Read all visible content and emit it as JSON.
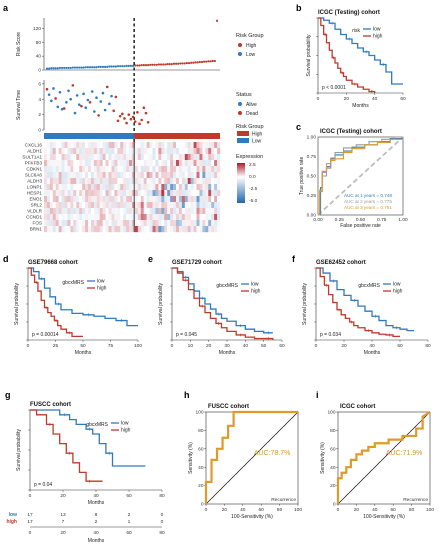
{
  "colors": {
    "high": "#c0392b",
    "low": "#2e7bbf",
    "alive": "#2e7bbf",
    "dead": "#c0392b",
    "roc": "#e09a2a",
    "roc_grey": "#bdbdbd",
    "auc1": "#2e7bbf",
    "auc2": "#9a9a9a",
    "auc3": "#e09a2a",
    "heat_high": "#b2182b",
    "heat_low": "#2166ac"
  },
  "panel_a": {
    "label": "a",
    "risk_score": {
      "ylabel": "Risk Score",
      "yticks": [
        "0",
        "40",
        "80",
        "120"
      ],
      "legend_title": "Risk Group",
      "legend_items": [
        "High",
        "Low"
      ]
    },
    "survival_time": {
      "ylabel": "Survival Time",
      "yticks": [
        "0",
        "2",
        "4",
        "6"
      ],
      "legend_title": "Status",
      "legend_items": [
        "Alive",
        "Dead"
      ]
    },
    "risk_bar": {
      "legend_title": "Risk Group",
      "legend_items": [
        "High",
        "Low"
      ]
    },
    "heatmap": {
      "genes": [
        "CXCL16",
        "ALDH1",
        "SULT1A1",
        "PFKFB3",
        "CDKN1",
        "SLC6A6",
        "ALDH3",
        "LONP1",
        "HESP1",
        "ENO1",
        "SRL2",
        "VLDLR",
        "CCND1",
        "FOS",
        "BRN1"
      ],
      "legend_title": "Expression",
      "legend_ticks": [
        "2.5",
        "0.0",
        "-2.5",
        "-5.0"
      ]
    }
  },
  "km_panels": [
    {
      "id": "b",
      "label": "b",
      "title": "ICGC (Testing) cohort",
      "xlabel": "Months",
      "ylabel": "Survival probability",
      "xticks": [
        "0",
        "20",
        "40",
        "60"
      ],
      "yticks": [
        "0.00",
        "0.25",
        "0.50",
        "0.75",
        "1.00"
      ],
      "legend_title": "risk",
      "legend_items": [
        "low",
        "high"
      ],
      "pvalue": "p < 0.0001"
    },
    {
      "id": "d",
      "label": "d",
      "title": "GSE79668 cohort",
      "xlabel": "Months",
      "ylabel": "Survival probability",
      "xticks": [
        "0",
        "25",
        "50",
        "75",
        "100"
      ],
      "yticks": [
        "0.00",
        "0.25",
        "0.50",
        "0.75",
        "1.00"
      ],
      "legend_title": "gbcxMRS",
      "legend_items": [
        "low",
        "high"
      ],
      "pvalue": "p = 0.00014"
    },
    {
      "id": "e",
      "label": "e",
      "title": "GSE71729 cohort",
      "xlabel": "Months",
      "ylabel": "Survival probability",
      "xticks": [
        "0",
        "10",
        "20",
        "30",
        "40",
        "50",
        "60"
      ],
      "yticks": [
        "0.00",
        "0.25",
        "0.50",
        "0.75",
        "1.00"
      ],
      "legend_title": "gbcxMRS",
      "legend_items": [
        "low",
        "high"
      ],
      "pvalue": "p = 0.045"
    },
    {
      "id": "f",
      "label": "f",
      "title": "GSE62452 cohort",
      "xlabel": "Months",
      "ylabel": "Survival probability",
      "xticks": [
        "0",
        "20",
        "40",
        "60",
        "80"
      ],
      "yticks": [
        "0.00",
        "0.25",
        "0.50",
        "0.75",
        "1.00"
      ],
      "legend_title": "gbcxMRS",
      "legend_items": [
        "low",
        "high"
      ],
      "pvalue": "p = 0.034"
    },
    {
      "id": "g",
      "label": "g",
      "title": "FUSCC cohort",
      "xlabel": "Months",
      "ylabel": "Survival probability",
      "xticks": [
        "0",
        "20",
        "40",
        "60",
        "80"
      ],
      "yticks": [
        "0.00",
        "0.25",
        "0.50",
        "0.75",
        "1.00"
      ],
      "legend_title": "gbcxMRS",
      "legend_items": [
        "low",
        "high"
      ],
      "pvalue": "p = 0.04",
      "risk_table": {
        "rows": [
          {
            "name": "low",
            "values": [
              "17",
              "13",
              "8",
              "2",
              "0"
            ]
          },
          {
            "name": "high",
            "values": [
              "17",
              "7",
              "2",
              "1",
              "0"
            ]
          }
        ],
        "xticks": [
          "0",
          "20",
          "40",
          "60",
          "80"
        ],
        "xlabel": "Months"
      }
    }
  ],
  "panel_c": {
    "label": "c",
    "title": "ICGC (Testing) cohort",
    "xlabel": "False positive rate",
    "ylabel": "True positive rate",
    "ticks": [
      "0.00",
      "0.25",
      "0.50",
      "0.75",
      "1.00"
    ],
    "auc_lines": [
      "AUC at 1 years = 0.748",
      "AUC at 2 years = 0.775",
      "AUC at 3 years = 0.751"
    ]
  },
  "roc_panels": [
    {
      "id": "h",
      "label": "h",
      "title": "FUSCC  cohort",
      "xlabel": "100-Sensitivity (%)",
      "ylabel": "Sensitivity (%)",
      "ticks": [
        "0",
        "20",
        "40",
        "60",
        "80",
        "100"
      ],
      "auc": "AUC:78.7%",
      "corner_label": "Recurrence"
    },
    {
      "id": "i",
      "label": "i",
      "title": "ICGC  cohort",
      "xlabel": "100-Sensitivity (%)",
      "ylabel": "Sensitivity (%)",
      "ticks": [
        "0",
        "20",
        "40",
        "60",
        "80",
        "100"
      ],
      "auc": "AUC:71.9%",
      "corner_label": "Recurrence"
    }
  ],
  "chart_data": [
    {
      "type": "scatter",
      "panel": "a-risk-score",
      "ylabel": "Risk Score",
      "ylim": [
        0,
        150
      ],
      "n_samples": 80,
      "cutoff_index": 41,
      "series": [
        {
          "name": "Low",
          "values": [
            4,
            4,
            5,
            5,
            5,
            5,
            6,
            6,
            6,
            6,
            6,
            6,
            7,
            7,
            7,
            7,
            7,
            7,
            8,
            8,
            8,
            8,
            8,
            8,
            9,
            9,
            9,
            9,
            9,
            10,
            10,
            10,
            10,
            11,
            11,
            11,
            11,
            12,
            12,
            12,
            12
          ]
        },
        {
          "name": "High",
          "values": [
            13,
            13,
            13,
            14,
            14,
            14,
            14,
            15,
            15,
            15,
            15,
            16,
            16,
            16,
            16,
            17,
            17,
            17,
            18,
            18,
            18,
            19,
            19,
            19,
            20,
            20,
            21,
            21,
            22,
            22,
            23,
            23,
            24,
            24,
            25,
            25,
            26,
            26,
            142
          ]
        }
      ]
    },
    {
      "type": "scatter",
      "panel": "a-survival-time",
      "ylabel": "Survival Time",
      "ylim": [
        0,
        6.5
      ],
      "series": [
        {
          "name": "Alive",
          "values": [
            4.6,
            3.8,
            5.4,
            3.0,
            4.9,
            2.7,
            3.6,
            5.1,
            4.0,
            2.2,
            4.5,
            3.3,
            4.7,
            2.9,
            3.9,
            5.0,
            2.4,
            4.2,
            3.7,
            4.8,
            2.6,
            3.4,
            4.4
          ]
        },
        {
          "name": "Dead",
          "values": [
            5.3,
            4.1,
            2.8,
            5.8,
            3.1,
            3.6,
            1.9,
            5.6,
            2.5,
            4.3,
            1.2,
            1.8,
            2.1,
            1.5,
            0.9,
            2.0,
            1.4,
            1.7,
            1.1,
            2.3,
            0.8,
            1.3,
            2.9,
            2.2,
            1.0
          ]
        }
      ]
    },
    {
      "type": "heatmap",
      "panel": "a-heatmap",
      "rows": [
        "CXCL16",
        "ALDH1",
        "SULT1A1",
        "PFKFB3",
        "CDKN1",
        "SLC6A6",
        "ALDH3",
        "LONP1",
        "HESP1",
        "ENO1",
        "SRL2",
        "VLDLR",
        "CCND1",
        "FOS",
        "BRN1"
      ],
      "range": [
        -5,
        2.5
      ]
    },
    {
      "type": "line",
      "panel": "b",
      "title": "ICGC (Testing) cohort",
      "xlabel": "Months",
      "ylabel": "Survival probability",
      "xlim": [
        0,
        60
      ],
      "ylim": [
        0,
        1
      ],
      "series": [
        {
          "name": "low",
          "x": [
            0,
            4,
            8,
            12,
            16,
            20,
            24,
            28,
            32,
            36,
            40,
            44,
            48,
            52,
            60
          ],
          "y": [
            1.0,
            0.97,
            0.93,
            0.85,
            0.78,
            0.72,
            0.66,
            0.6,
            0.55,
            0.5,
            0.44,
            0.38,
            0.28,
            0.12,
            0.12
          ]
        },
        {
          "name": "high",
          "x": [
            0,
            2,
            4,
            6,
            8,
            10,
            12,
            14,
            16,
            18,
            20,
            24,
            28,
            32,
            36,
            40
          ],
          "y": [
            1.0,
            0.9,
            0.78,
            0.67,
            0.57,
            0.47,
            0.4,
            0.33,
            0.27,
            0.22,
            0.17,
            0.12,
            0.08,
            0.05,
            0.02,
            0.0
          ]
        }
      ]
    },
    {
      "type": "line",
      "panel": "c",
      "title": "ICGC (Testing) cohort",
      "xlabel": "False positive rate",
      "ylabel": "True positive rate",
      "xlim": [
        0,
        1
      ],
      "ylim": [
        0,
        1
      ],
      "series": [
        {
          "name": "1 year",
          "x": [
            0,
            0.03,
            0.05,
            0.1,
            0.15,
            0.2,
            0.3,
            0.4,
            0.55,
            0.7,
            0.85,
            1.0
          ],
          "y": [
            0,
            0.35,
            0.55,
            0.62,
            0.72,
            0.77,
            0.82,
            0.87,
            0.9,
            0.94,
            0.98,
            1.0
          ]
        },
        {
          "name": "2 years",
          "x": [
            0,
            0.02,
            0.05,
            0.1,
            0.15,
            0.2,
            0.3,
            0.45,
            0.6,
            0.75,
            0.9,
            1.0
          ],
          "y": [
            0,
            0.3,
            0.5,
            0.6,
            0.73,
            0.8,
            0.86,
            0.9,
            0.94,
            0.97,
            1.0,
            1.0
          ]
        },
        {
          "name": "3 years",
          "x": [
            0,
            0.02,
            0.05,
            0.1,
            0.15,
            0.2,
            0.3,
            0.4,
            0.55,
            0.7,
            0.85,
            1.0
          ],
          "y": [
            0,
            0.32,
            0.56,
            0.66,
            0.7,
            0.72,
            0.8,
            0.85,
            0.9,
            0.93,
            0.97,
            1.0
          ]
        }
      ]
    },
    {
      "type": "line",
      "panel": "d",
      "title": "GSE79668 cohort",
      "xlabel": "Months",
      "ylabel": "Survival probability",
      "xlim": [
        0,
        100
      ],
      "ylim": [
        0,
        1
      ],
      "series": [
        {
          "name": "low",
          "x": [
            0,
            5,
            10,
            15,
            20,
            25,
            30,
            40,
            50,
            60,
            70,
            80,
            90,
            100
          ],
          "y": [
            1.0,
            0.95,
            0.85,
            0.72,
            0.6,
            0.5,
            0.42,
            0.37,
            0.35,
            0.33,
            0.3,
            0.27,
            0.2,
            0.2
          ]
        },
        {
          "name": "high",
          "x": [
            0,
            3,
            6,
            9,
            12,
            15,
            18,
            21,
            24,
            27,
            30,
            35,
            40,
            45,
            50
          ],
          "y": [
            1.0,
            0.9,
            0.8,
            0.68,
            0.55,
            0.45,
            0.38,
            0.33,
            0.27,
            0.2,
            0.15,
            0.1,
            0.05,
            0.05,
            0.05
          ]
        }
      ]
    },
    {
      "type": "line",
      "panel": "e",
      "title": "GSE71729 cohort",
      "xlabel": "Months",
      "ylabel": "Survival probability",
      "xlim": [
        0,
        60
      ],
      "ylim": [
        0,
        1
      ],
      "series": [
        {
          "name": "low",
          "x": [
            0,
            3,
            6,
            9,
            12,
            15,
            18,
            21,
            24,
            27,
            30,
            35,
            40,
            45,
            50,
            55
          ],
          "y": [
            1.0,
            0.95,
            0.87,
            0.78,
            0.68,
            0.58,
            0.5,
            0.43,
            0.36,
            0.3,
            0.26,
            0.2,
            0.15,
            0.12,
            0.1,
            0.1
          ]
        },
        {
          "name": "high",
          "x": [
            0,
            3,
            6,
            9,
            12,
            15,
            18,
            21,
            24,
            27,
            30,
            35,
            40,
            45,
            50,
            55
          ],
          "y": [
            1.0,
            0.93,
            0.83,
            0.7,
            0.58,
            0.47,
            0.38,
            0.3,
            0.23,
            0.17,
            0.12,
            0.07,
            0.04,
            0.02,
            0.02,
            0.0
          ]
        }
      ]
    },
    {
      "type": "line",
      "panel": "f",
      "title": "GSE62452 cohort",
      "xlabel": "Months",
      "ylabel": "Survival probability",
      "xlim": [
        0,
        80
      ],
      "ylim": [
        0,
        1
      ],
      "series": [
        {
          "name": "low",
          "x": [
            0,
            5,
            10,
            15,
            20,
            25,
            30,
            35,
            40,
            45,
            50,
            55,
            60,
            65,
            70
          ],
          "y": [
            1.0,
            0.93,
            0.82,
            0.7,
            0.62,
            0.55,
            0.47,
            0.4,
            0.33,
            0.27,
            0.2,
            0.17,
            0.15,
            0.13,
            0.13
          ]
        },
        {
          "name": "high",
          "x": [
            0,
            3,
            6,
            9,
            12,
            15,
            18,
            21,
            24,
            27,
            30,
            35,
            40,
            45,
            50,
            55,
            60
          ],
          "y": [
            1.0,
            0.88,
            0.76,
            0.63,
            0.52,
            0.42,
            0.35,
            0.3,
            0.25,
            0.2,
            0.17,
            0.13,
            0.1,
            0.08,
            0.07,
            0.05,
            0.05
          ]
        }
      ]
    },
    {
      "type": "line",
      "panel": "g",
      "title": "FUSCC cohort",
      "xlabel": "Months",
      "ylabel": "Survival probability",
      "xlim": [
        0,
        80
      ],
      "ylim": [
        0,
        1
      ],
      "series": [
        {
          "name": "low",
          "x": [
            0,
            12,
            18,
            24,
            28,
            34,
            38,
            42,
            46,
            50,
            58,
            70
          ],
          "y": [
            1.0,
            1.0,
            0.94,
            0.88,
            0.82,
            0.76,
            0.7,
            0.58,
            0.46,
            0.3,
            0.3,
            0.3
          ]
        },
        {
          "name": "high",
          "x": [
            0,
            4,
            10,
            14,
            18,
            22,
            26,
            30,
            34,
            38,
            44
          ],
          "y": [
            1.0,
            0.94,
            0.82,
            0.7,
            0.58,
            0.46,
            0.34,
            0.22,
            0.11,
            0.11,
            0.11
          ]
        }
      ]
    },
    {
      "type": "line",
      "panel": "h",
      "title": "FUSCC  cohort",
      "xlabel": "100-Sensitivity (%)",
      "ylabel": "Sensitivity (%)",
      "xlim": [
        0,
        100
      ],
      "ylim": [
        0,
        100
      ],
      "series": [
        {
          "name": "Recurrence",
          "x": [
            0,
            0,
            6,
            6,
            12,
            12,
            18,
            18,
            24,
            24,
            30,
            30,
            100
          ],
          "y": [
            0,
            24,
            24,
            48,
            48,
            60,
            60,
            72,
            72,
            85,
            85,
            100,
            100
          ]
        }
      ]
    },
    {
      "type": "line",
      "panel": "i",
      "title": "ICGC  cohort",
      "xlabel": "100-Sensitivity (%)",
      "ylabel": "Sensitivity (%)",
      "xlim": [
        0,
        100
      ],
      "ylim": [
        0,
        100
      ],
      "series": [
        {
          "name": "Recurrence",
          "x": [
            0,
            0,
            4,
            4,
            9,
            9,
            14,
            14,
            20,
            20,
            26,
            26,
            33,
            33,
            40,
            40,
            55,
            55,
            70,
            70,
            85,
            85,
            92,
            92,
            100
          ],
          "y": [
            0,
            28,
            28,
            34,
            34,
            40,
            40,
            48,
            48,
            54,
            54,
            58,
            58,
            62,
            62,
            66,
            66,
            70,
            70,
            74,
            74,
            82,
            82,
            95,
            100
          ]
        }
      ]
    }
  ]
}
